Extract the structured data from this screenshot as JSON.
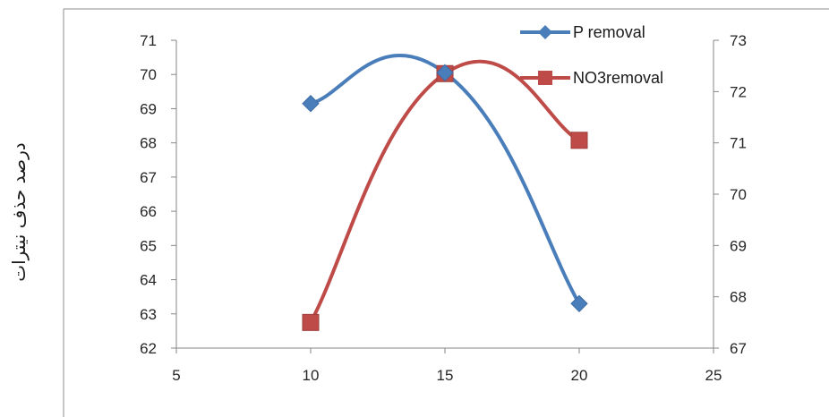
{
  "chart_data": {
    "type": "line",
    "title": "",
    "xlabel": "",
    "ylabel": "درصد حذف نیترات",
    "x": [
      10,
      15,
      20
    ],
    "xlim": [
      5,
      25
    ],
    "xticks": [
      5,
      10,
      15,
      20,
      25
    ],
    "ylim_left": [
      62,
      71
    ],
    "yticks_left": [
      62,
      63,
      64,
      65,
      66,
      67,
      68,
      69,
      70,
      71
    ],
    "ylim_right": [
      67,
      73
    ],
    "yticks_right": [
      67,
      68,
      69,
      70,
      71,
      72,
      73
    ],
    "grid": false,
    "smooth": true,
    "legend_position": "top-right",
    "series": [
      {
        "name": "P removal",
        "axis": "left",
        "marker": "diamond",
        "color": "#4A7EBB",
        "values": [
          69.15,
          70.05,
          63.3
        ]
      },
      {
        "name": "NO3removal",
        "axis": "right",
        "marker": "square",
        "color": "#BE4B48",
        "values": [
          67.5,
          72.35,
          71.05
        ]
      }
    ]
  }
}
